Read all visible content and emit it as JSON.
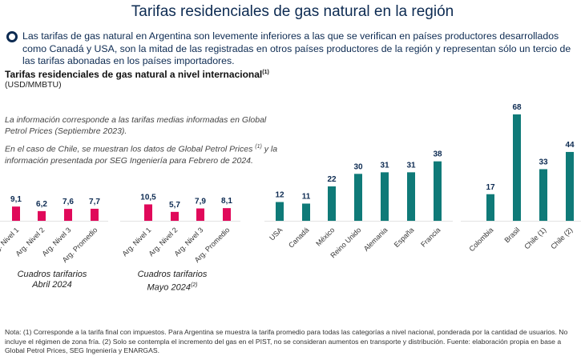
{
  "title": "Tarifas residenciales de gas natural en la región",
  "bullet": {
    "icon": "circle-bullet-icon",
    "text": "Las tarifas de gas natural en Argentina son levemente inferiores a las que se verifican en países productores desarrollados como Canadá y USA, son la mitad de las registradas en otros países productores de la región y representan sólo un tercio de las tarifas abonadas en los países importadores."
  },
  "notes": {
    "line1": "La información corresponde a las tarifas medias informadas en Global Petrol Prices (Septiembre 2023).",
    "line2_a": "En el caso de Chile, se muestran los datos de Global Petrol Prices ",
    "line2_sup": "(1)",
    "line2_b": " y la información presentada por SEG Ingeniería para Febrero de 2024."
  },
  "groups": {
    "abril_line1": "Cuadros tarifarios",
    "abril_line2": "Abril 2024",
    "mayo_line1": "Cuadros tarifarios",
    "mayo_line2": "Mayo 2024",
    "mayo_sup": "(2)"
  },
  "footnote": "Nota: (1) Corresponde a la tarifa final con impuestos. Para Argentina se muestra la tarifa promedio para todas las categorías a nivel nacional, ponderada por la cantidad de usuarios. No incluye el régimen de zona fría. (2) Solo se contempla el incremento del gas en el PIST, no se consideran aumentos en transporte y distribución. Fuente: elaboración propia en base a Global Petrol Prices, SEG Ingeniería y ENARGAS.",
  "colors": {
    "argentina": "#e0095a",
    "international": "#0f7a78",
    "label": "#0d2b52",
    "axis": "#e3e3e3"
  },
  "chart_data": {
    "type": "bar",
    "title": "Tarifas residenciales de gas natural a nivel internacional",
    "title_sup": "(1)",
    "ylabel": "(USD/MMBTU)",
    "ylim": [
      0,
      70
    ],
    "grid": false,
    "categories": [
      "Arg. Nivel 1",
      "Arg. Nivel 2",
      "Arg. Nivel 3",
      "Arg. Promedio",
      "Arg. Nivel 1",
      "Arg. Nivel 2",
      "Arg. Nivel 3",
      "Arg. Promedio",
      "USA",
      "Canadá",
      "México",
      "Reino Unido",
      "Alemania",
      "España",
      "Francia",
      "Colombia",
      "Brasil",
      "Chile (1)",
      "Chile (2)"
    ],
    "values": [
      9.1,
      6.2,
      7.6,
      7.7,
      10.5,
      5.7,
      7.9,
      8.1,
      12,
      11,
      22,
      30,
      31,
      31,
      38,
      17,
      68,
      33,
      44
    ],
    "value_labels": [
      "9,1",
      "6,2",
      "7,6",
      "7,7",
      "10,5",
      "5,7",
      "7,9",
      "8,1",
      "12",
      "11",
      "22",
      "30",
      "31",
      "31",
      "38",
      "17",
      "68",
      "33",
      "44"
    ],
    "series_group": [
      "argentina",
      "argentina",
      "argentina",
      "argentina",
      "argentina",
      "argentina",
      "argentina",
      "argentina",
      "international",
      "international",
      "international",
      "international",
      "international",
      "international",
      "international",
      "international",
      "international",
      "international",
      "international"
    ]
  }
}
